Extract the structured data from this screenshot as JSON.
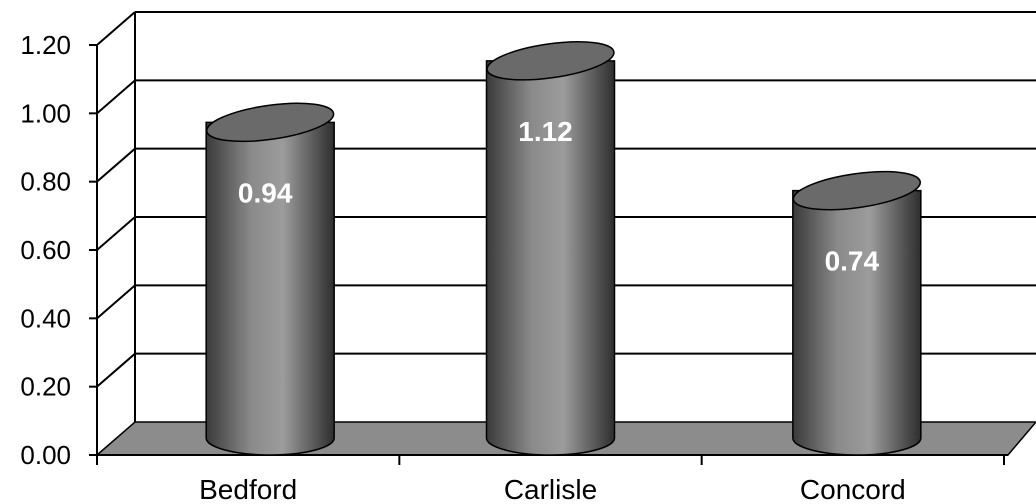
{
  "chart_data": {
    "type": "bar",
    "style": "3d-cylinder",
    "categories": [
      "Bedford",
      "Carlisle",
      "Concord"
    ],
    "values": [
      0.94,
      1.12,
      0.74
    ],
    "data_labels": [
      "0.94",
      "1.12",
      "0.74"
    ],
    "title": "",
    "xlabel": "",
    "ylabel": "",
    "ylim": [
      0,
      1.2
    ],
    "y_ticks": [
      "0.00",
      "0.20",
      "0.40",
      "0.60",
      "0.80",
      "1.00",
      "1.20"
    ],
    "grid": true,
    "legend": "none",
    "colors": {
      "bar": "#808080",
      "floor": "#8c8c8c",
      "grid": "#000000",
      "label": "#ffffff"
    }
  }
}
